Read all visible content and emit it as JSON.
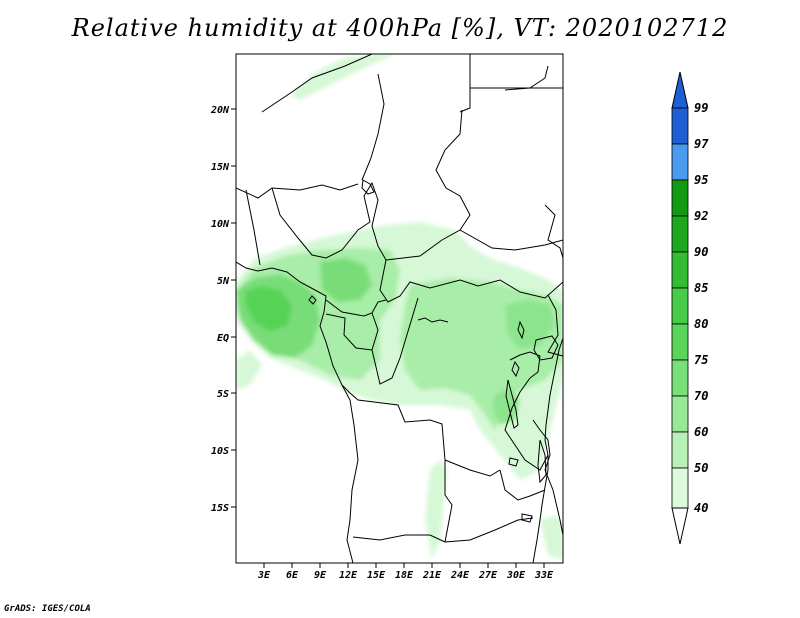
{
  "title": "Relative humidity at 400hPa [%], VT: 2020102712",
  "credit": "GrADS: IGES/COLA",
  "lat_labels": [
    "20N",
    "15N",
    "10N",
    "5N",
    "EQ",
    "5S",
    "10S",
    "15S"
  ],
  "lon_labels": [
    "3E",
    "6E",
    "9E",
    "12E",
    "15E",
    "18E",
    "21E",
    "24E",
    "27E",
    "30E",
    "33E"
  ],
  "colorbar": {
    "labels": [
      "99",
      "97",
      "95",
      "92",
      "90",
      "85",
      "80",
      "75",
      "70",
      "60",
      "50",
      "40"
    ],
    "colors": [
      "#1e5fd6",
      "#2b7fe0",
      "#4a9bf0",
      "#129a12",
      "#28b428",
      "#3cc83c",
      "#50d750",
      "#6ee06e",
      "#8fe88f",
      "#b1f0b1",
      "#cff7cf",
      "#eafdea"
    ]
  },
  "map": {
    "lat_range": [
      -20,
      24.5
    ],
    "lon_range": [
      0,
      35
    ],
    "field": "relative humidity",
    "level": "400hPa",
    "units": "%",
    "valid_time": "2020102712"
  }
}
